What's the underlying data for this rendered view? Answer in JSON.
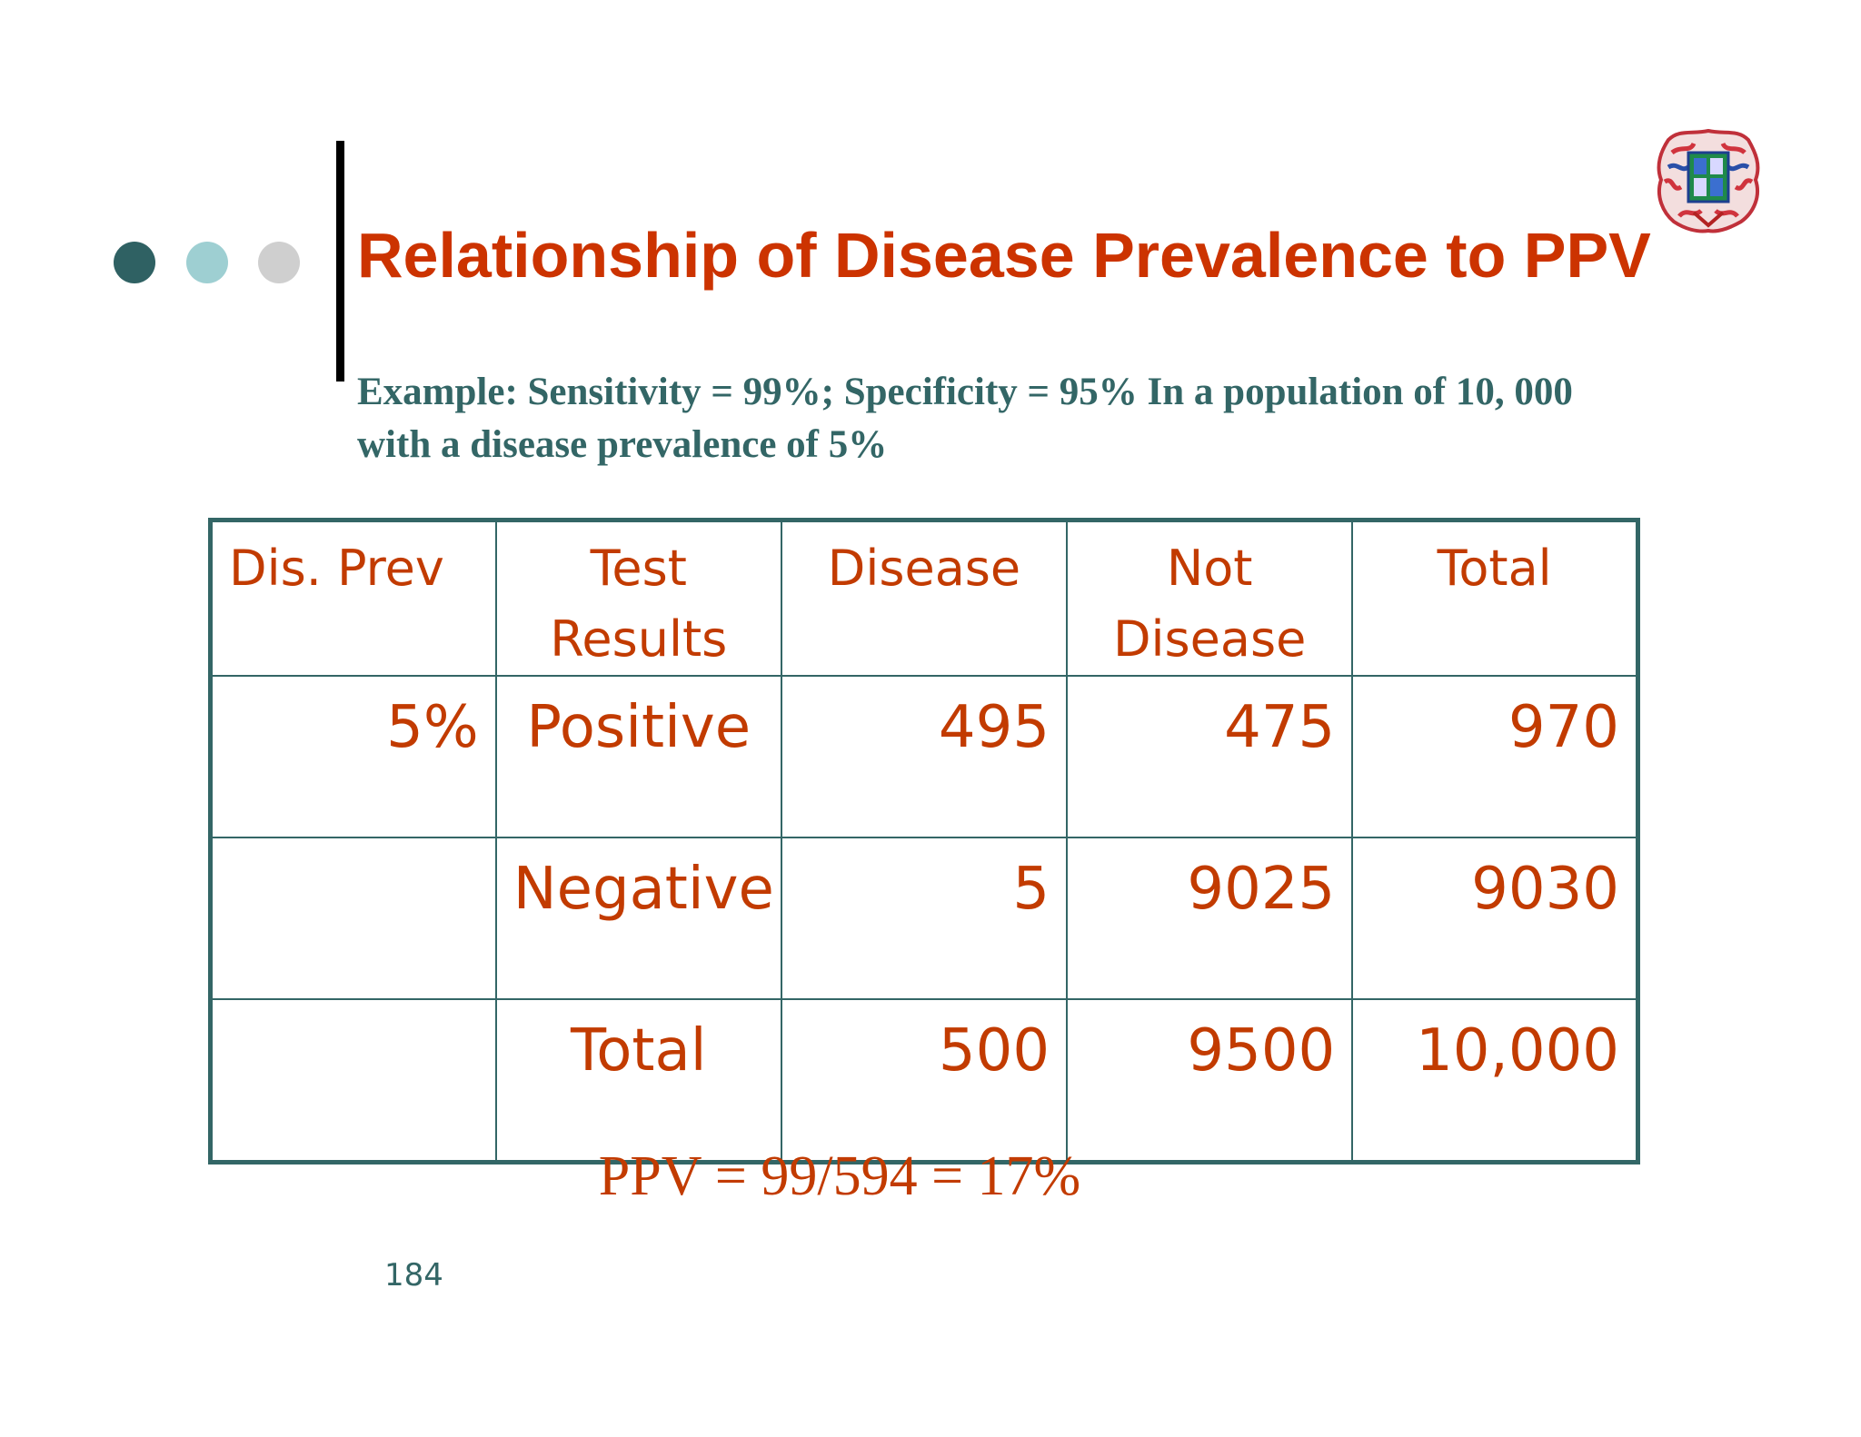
{
  "slide": {
    "title": "Relationship of Disease Prevalence to PPV",
    "subtitle_line1": "Example: Sensitivity = 99%; Specificity = 95% In a population of  10, 000",
    "subtitle_line2": "with a disease prevalence of 5%",
    "page_number": "184"
  },
  "table": {
    "headers": [
      "Dis. Prev",
      "Test Results",
      "Disease",
      "Not Disease",
      "Total"
    ],
    "rows": [
      [
        "5%",
        "Positive",
        "495",
        "475",
        "970"
      ],
      [
        "",
        "Negative",
        "5",
        "9025",
        "9030"
      ],
      [
        "",
        "Total",
        "500",
        "9500",
        "10,000"
      ]
    ]
  },
  "formula": "PPV = 99/594 = 17%",
  "colors": {
    "title": "#cc3300",
    "subtitle": "#336666",
    "table_text": "#c23b00",
    "table_border": "#336666",
    "dots": [
      "#2f6163",
      "#9ecfd2",
      "#cfcfcf"
    ]
  },
  "icons": {
    "logo": "university-seal-icon"
  }
}
